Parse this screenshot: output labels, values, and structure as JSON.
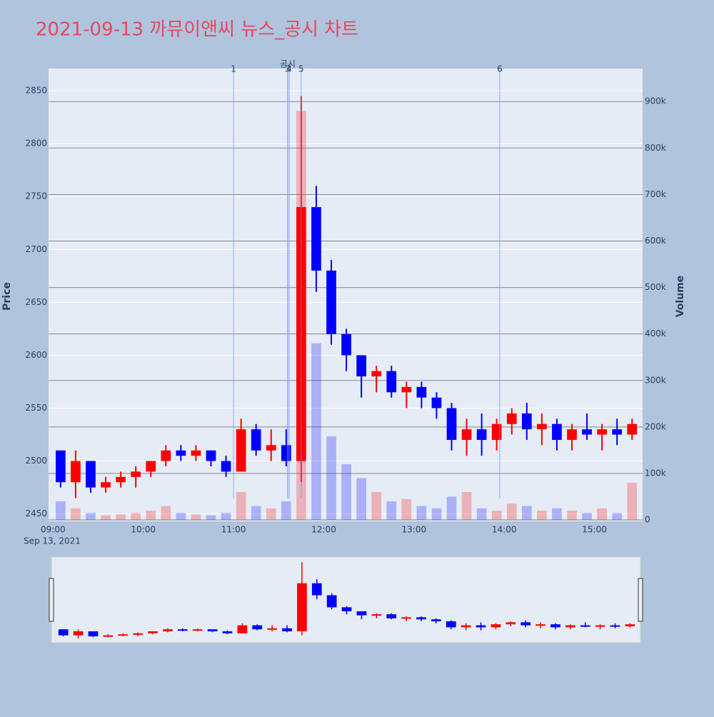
{
  "chart_data": {
    "type": "candlestick",
    "title": "2021-09-13 까뮤이앤씨 뉴스_공시 차트",
    "y_title": "Price",
    "y2_title": "Volume",
    "x_date_label": "Sep 13, 2021",
    "increasing_color": "#ff0000",
    "decreasing_color": "#0000ff",
    "x": [
      "09:00",
      "09:10",
      "09:20",
      "09:30",
      "09:40",
      "09:50",
      "10:00",
      "10:10",
      "10:20",
      "10:30",
      "10:40",
      "10:50",
      "11:00",
      "11:10",
      "11:20",
      "11:30",
      "11:40",
      "11:50",
      "12:00",
      "12:10",
      "12:20",
      "12:30",
      "12:40",
      "12:50",
      "13:00",
      "13:10",
      "13:20",
      "13:30",
      "13:40",
      "13:50",
      "14:00",
      "14:10",
      "14:20",
      "14:30",
      "14:40",
      "14:50",
      "15:00",
      "15:10",
      "15:20"
    ],
    "open": [
      2510,
      2480,
      2500,
      2475,
      2480,
      2485,
      2490,
      2500,
      2510,
      2505,
      2510,
      2500,
      2490,
      2530,
      2510,
      2515,
      2500,
      2740,
      2680,
      2620,
      2600,
      2580,
      2585,
      2565,
      2570,
      2560,
      2550,
      2520,
      2530,
      2520,
      2535,
      2545,
      2530,
      2535,
      2520,
      2530,
      2525,
      2530,
      2525
    ],
    "high": [
      2510,
      2510,
      2500,
      2485,
      2490,
      2495,
      2500,
      2515,
      2515,
      2515,
      2510,
      2505,
      2540,
      2535,
      2530,
      2530,
      2845,
      2760,
      2690,
      2625,
      2600,
      2590,
      2590,
      2575,
      2575,
      2565,
      2555,
      2540,
      2545,
      2540,
      2550,
      2555,
      2545,
      2540,
      2535,
      2545,
      2535,
      2540,
      2540
    ],
    "low": [
      2475,
      2465,
      2470,
      2470,
      2475,
      2475,
      2485,
      2495,
      2500,
      2500,
      2495,
      2485,
      2490,
      2505,
      2500,
      2495,
      2480,
      2660,
      2610,
      2585,
      2560,
      2565,
      2560,
      2550,
      2550,
      2540,
      2510,
      2505,
      2505,
      2510,
      2525,
      2520,
      2515,
      2510,
      2510,
      2520,
      2510,
      2515,
      2520
    ],
    "close": [
      2480,
      2500,
      2475,
      2480,
      2485,
      2490,
      2500,
      2510,
      2505,
      2510,
      2500,
      2490,
      2530,
      2510,
      2515,
      2500,
      2740,
      2680,
      2620,
      2600,
      2580,
      2585,
      2565,
      2570,
      2560,
      2550,
      2520,
      2530,
      2520,
      2535,
      2545,
      2530,
      2535,
      2520,
      2530,
      2525,
      2530,
      2525,
      2535
    ],
    "volume": [
      40000,
      25000,
      15000,
      10000,
      12000,
      15000,
      20000,
      30000,
      15000,
      12000,
      10000,
      15000,
      60000,
      30000,
      25000,
      40000,
      880000,
      380000,
      180000,
      120000,
      90000,
      60000,
      40000,
      45000,
      30000,
      25000,
      50000,
      60000,
      25000,
      20000,
      35000,
      30000,
      20000,
      25000,
      20000,
      15000,
      25000,
      15000,
      80000
    ],
    "xlim": [
      "08:57",
      "15:32"
    ],
    "xticks": [
      "09:00",
      "10:00",
      "11:00",
      "12:00",
      "13:00",
      "14:00",
      "15:00"
    ],
    "ylim": [
      2443,
      2871
    ],
    "yticks": [
      2450,
      2500,
      2550,
      2600,
      2650,
      2700,
      2750,
      2800,
      2850
    ],
    "y2lim": [
      -3000,
      971000
    ],
    "y2ticks": [
      0,
      {
        "value": 100000,
        "label": "100k"
      },
      {
        "value": 200000,
        "label": "200k"
      },
      {
        "value": 300000,
        "label": "300k"
      },
      {
        "value": 400000,
        "label": "400k"
      },
      {
        "value": 500000,
        "label": "500k"
      },
      {
        "value": 600000,
        "label": "600k"
      },
      {
        "value": 700000,
        "label": "700k"
      },
      {
        "value": 800000,
        "label": "800k"
      },
      {
        "value": 900000,
        "label": "900k"
      }
    ],
    "vlines": [
      {
        "label": "1",
        "x": "11:00"
      },
      {
        "label": "공시",
        "x": "11:36"
      },
      {
        "label": "3",
        "x": "11:36"
      },
      {
        "label": "4",
        "x": "11:37"
      },
      {
        "label": "5",
        "x": "11:45"
      },
      {
        "label": "6",
        "x": "13:57"
      }
    ]
  }
}
